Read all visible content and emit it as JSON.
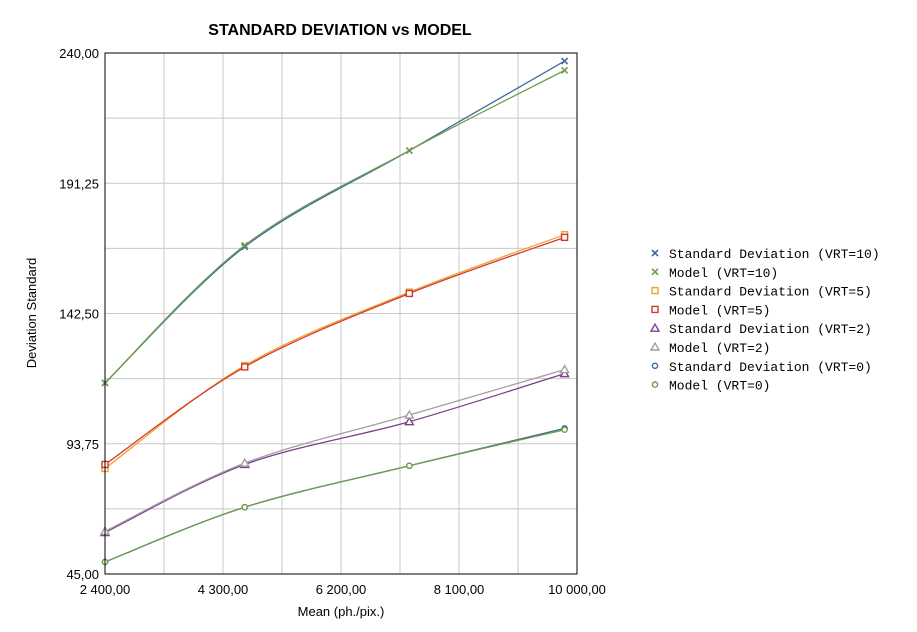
{
  "chart_data": {
    "type": "line",
    "title": "STANDARD DEVIATION vs MODEL",
    "xlabel": "Mean (ph./pix.)",
    "ylabel": "Deviation Standard",
    "xlim": [
      2400,
      10000
    ],
    "ylim": [
      45,
      240
    ],
    "x_ticks": [
      {
        "value": 2400,
        "label": "2 400,00"
      },
      {
        "value": 4300,
        "label": "4 300,00"
      },
      {
        "value": 6200,
        "label": "6 200,00"
      },
      {
        "value": 8100,
        "label": "8 100,00"
      },
      {
        "value": 10000,
        "label": "10 000,00"
      }
    ],
    "y_ticks": [
      {
        "value": 45,
        "label": "45,00"
      },
      {
        "value": 93.75,
        "label": "93,75"
      },
      {
        "value": 142.5,
        "label": "142,50"
      },
      {
        "value": 191.25,
        "label": "191,25"
      },
      {
        "value": 240,
        "label": "240,00"
      }
    ],
    "grid": true,
    "legend_position": "right",
    "series": [
      {
        "name": "Standard Deviation (VRT=10)",
        "color": "#3f6b9b",
        "marker": "x",
        "line": true,
        "x": [
          2400,
          4650,
          7300,
          9800
        ],
        "y": [
          116.5,
          167.5,
          203.5,
          237
        ]
      },
      {
        "name": "Model (VRT=10)",
        "color": "#6f9c4a",
        "marker": "x",
        "line": true,
        "x": [
          2400,
          4650,
          7300,
          9800
        ],
        "y": [
          116.5,
          168,
          203.5,
          233.5
        ]
      },
      {
        "name": "Standard Deviation (VRT=5)",
        "color": "#f0a030",
        "marker": "square",
        "line": true,
        "x": [
          2400,
          4650,
          7300,
          9800
        ],
        "y": [
          84.5,
          123,
          150.5,
          172
        ]
      },
      {
        "name": "Model (VRT=5)",
        "color": "#d03a2a",
        "marker": "square",
        "line": true,
        "x": [
          2400,
          4650,
          7300,
          9800
        ],
        "y": [
          86,
          122.5,
          150,
          171
        ]
      },
      {
        "name": "Standard Deviation (VRT=2)",
        "color": "#7b3f8f",
        "marker": "triangle",
        "line": true,
        "x": [
          2400,
          4650,
          7300,
          9800
        ],
        "y": [
          60.5,
          86,
          102,
          120
        ]
      },
      {
        "name": "Model (VRT=2)",
        "color": "#a0a0a0",
        "marker": "triangle",
        "line": true,
        "x": [
          2400,
          4650,
          7300,
          9800
        ],
        "y": [
          61,
          86.5,
          104.5,
          121.5
        ]
      },
      {
        "name": "Standard Deviation (VRT=0)",
        "color": "#3f6b9b",
        "marker": "circle",
        "line": true,
        "x": [
          2400,
          4650,
          7300,
          9800
        ],
        "y": [
          49.5,
          70,
          85.5,
          99.5
        ]
      },
      {
        "name": "Model (VRT=0)",
        "color": "#6f9c4a",
        "marker": "circle",
        "line": true,
        "x": [
          2400,
          4650,
          7300,
          9800
        ],
        "y": [
          49.5,
          70,
          85.5,
          99
        ]
      }
    ]
  }
}
